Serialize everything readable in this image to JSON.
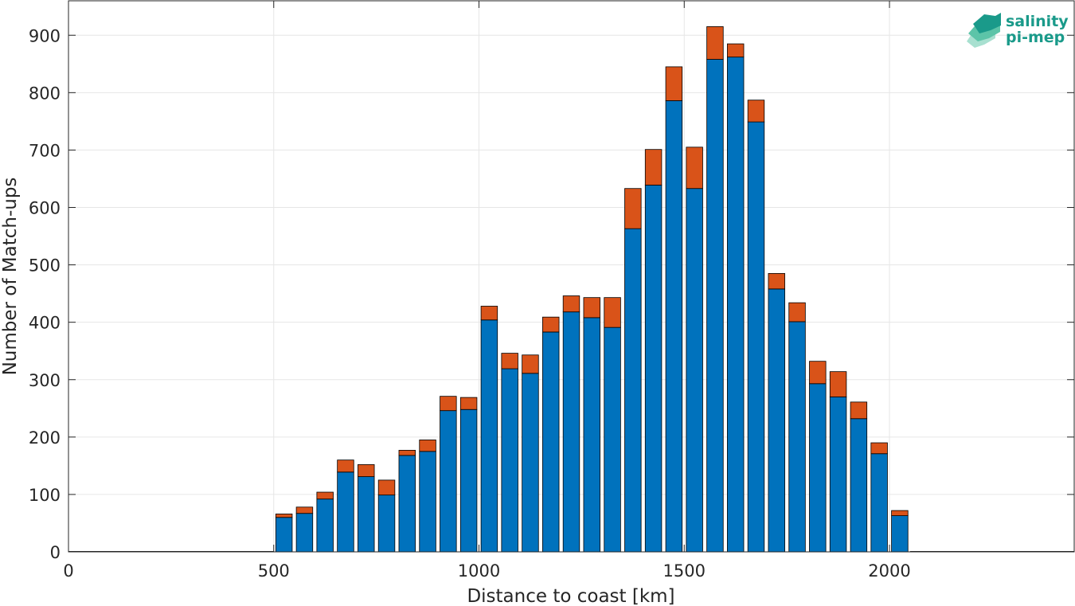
{
  "chart_data": {
    "type": "bar",
    "stacked": true,
    "xlabel": "Distance to coast [km]",
    "ylabel": "Number of Match-ups",
    "xlim": [
      0,
      2450
    ],
    "ylim": [
      0,
      960
    ],
    "xticks": [
      0,
      500,
      1000,
      1500,
      2000
    ],
    "yticks": [
      0,
      100,
      200,
      300,
      400,
      500,
      600,
      700,
      800,
      900
    ],
    "grid": true,
    "bin_width": 50,
    "x": [
      525,
      575,
      625,
      675,
      725,
      775,
      825,
      875,
      925,
      975,
      1025,
      1075,
      1125,
      1175,
      1225,
      1275,
      1325,
      1375,
      1425,
      1475,
      1525,
      1575,
      1625,
      1675,
      1725,
      1775,
      1825,
      1875,
      1925,
      1975,
      2025
    ],
    "series": [
      {
        "color": "#0072BD",
        "values": [
          60,
          67,
          92,
          139,
          131,
          99,
          168,
          175,
          246,
          248,
          404,
          319,
          311,
          383,
          418,
          408,
          391,
          563,
          639,
          786,
          633,
          858,
          862,
          749,
          458,
          401,
          293,
          270,
          232,
          171,
          63
        ]
      },
      {
        "color": "#D95319",
        "values": [
          6,
          11,
          12,
          21,
          21,
          26,
          9,
          20,
          25,
          21,
          24,
          27,
          32,
          26,
          28,
          35,
          52,
          70,
          62,
          59,
          72,
          57,
          23,
          38,
          27,
          33,
          39,
          44,
          29,
          19,
          9
        ]
      }
    ]
  },
  "logo": {
    "line1": "salinity",
    "line2": "pi-mep",
    "color": "#1a9a8a"
  }
}
